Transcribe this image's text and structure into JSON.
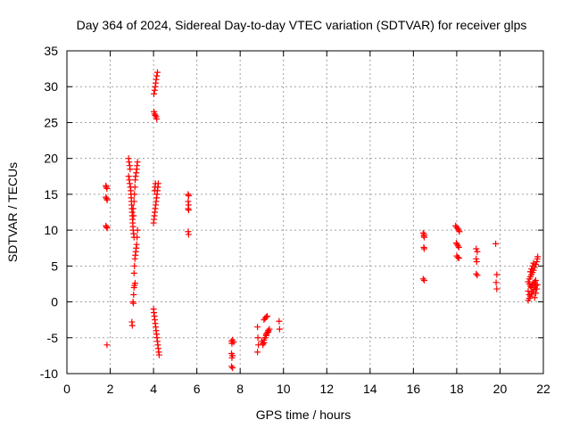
{
  "chart_data": {
    "type": "scatter",
    "title": "Day 364 of 2024, Sidereal Day-to-day VTEC variation (SDTVAR) for receiver glps",
    "xlabel": "GPS time / hours",
    "ylabel": "SDTVAR / TECUs",
    "xlim": [
      0,
      22
    ],
    "ylim": [
      -10,
      35
    ],
    "xticks": [
      0,
      2,
      4,
      6,
      8,
      10,
      12,
      14,
      16,
      18,
      20,
      22
    ],
    "yticks": [
      -10,
      -5,
      0,
      5,
      10,
      15,
      20,
      25,
      30,
      35
    ],
    "grid": true,
    "marker": "plus",
    "color": "#ff0000",
    "series": [
      {
        "name": "SDTVAR",
        "points": [
          [
            1.8,
            16.2
          ],
          [
            1.82,
            16.0
          ],
          [
            1.85,
            15.8
          ],
          [
            1.8,
            14.6
          ],
          [
            1.83,
            14.4
          ],
          [
            1.86,
            14.2
          ],
          [
            1.8,
            10.6
          ],
          [
            1.83,
            10.4
          ],
          [
            1.86,
            10.3
          ],
          [
            1.85,
            -6.0
          ],
          [
            2.85,
            20.0
          ],
          [
            2.87,
            19.5
          ],
          [
            2.9,
            19.0
          ],
          [
            2.92,
            18.5
          ],
          [
            2.85,
            17.5
          ],
          [
            2.88,
            17.0
          ],
          [
            2.9,
            16.5
          ],
          [
            2.93,
            16.0
          ],
          [
            2.95,
            15.5
          ],
          [
            2.96,
            15.0
          ],
          [
            2.97,
            14.5
          ],
          [
            2.98,
            14.0
          ],
          [
            2.99,
            13.5
          ],
          [
            3.0,
            13.0
          ],
          [
            3.01,
            12.5
          ],
          [
            3.02,
            12.0
          ],
          [
            3.03,
            11.5
          ],
          [
            3.04,
            11.0
          ],
          [
            3.05,
            10.5
          ],
          [
            3.06,
            10.0
          ],
          [
            3.08,
            9.5
          ],
          [
            3.1,
            9.0
          ],
          [
            3.0,
            -2.8
          ],
          [
            3.02,
            -3.3
          ],
          [
            3.05,
            0.0
          ],
          [
            3.07,
            -0.2
          ],
          [
            3.08,
            1.0
          ],
          [
            3.1,
            2.0
          ],
          [
            3.12,
            2.3
          ],
          [
            3.15,
            2.6
          ],
          [
            3.1,
            4.0
          ],
          [
            3.12,
            5.0
          ],
          [
            3.14,
            6.0
          ],
          [
            3.16,
            6.5
          ],
          [
            3.18,
            7.0
          ],
          [
            3.2,
            7.5
          ],
          [
            3.22,
            8.0
          ],
          [
            3.24,
            9.0
          ],
          [
            3.26,
            10.0
          ],
          [
            3.15,
            17.0
          ],
          [
            3.17,
            17.5
          ],
          [
            3.2,
            18.0
          ],
          [
            3.22,
            18.5
          ],
          [
            3.24,
            19.0
          ],
          [
            3.26,
            19.5
          ],
          [
            3.1,
            14.0
          ],
          [
            3.12,
            15.0
          ],
          [
            3.14,
            16.0
          ],
          [
            3.08,
            12.0
          ],
          [
            3.06,
            13.0
          ],
          [
            4.0,
            11.0
          ],
          [
            4.02,
            11.5
          ],
          [
            4.04,
            12.0
          ],
          [
            4.06,
            12.5
          ],
          [
            4.08,
            13.0
          ],
          [
            4.1,
            13.5
          ],
          [
            4.12,
            14.0
          ],
          [
            4.14,
            14.5
          ],
          [
            4.16,
            15.0
          ],
          [
            4.18,
            15.5
          ],
          [
            4.2,
            16.0
          ],
          [
            4.22,
            16.5
          ],
          [
            4.05,
            15.5
          ],
          [
            4.07,
            16.0
          ],
          [
            4.09,
            16.5
          ],
          [
            4.02,
            26.5
          ],
          [
            4.05,
            26.2
          ],
          [
            4.08,
            26.0
          ],
          [
            4.12,
            25.8
          ],
          [
            4.15,
            25.5
          ],
          [
            4.02,
            29.0
          ],
          [
            4.05,
            29.5
          ],
          [
            4.08,
            30.0
          ],
          [
            4.1,
            30.5
          ],
          [
            4.12,
            31.0
          ],
          [
            4.15,
            31.5
          ],
          [
            4.18,
            32.0
          ],
          [
            4.0,
            -1.0
          ],
          [
            4.02,
            -1.5
          ],
          [
            4.04,
            -2.0
          ],
          [
            4.06,
            -2.5
          ],
          [
            4.08,
            -3.0
          ],
          [
            4.1,
            -3.5
          ],
          [
            4.12,
            -4.0
          ],
          [
            4.14,
            -4.5
          ],
          [
            4.16,
            -5.0
          ],
          [
            4.18,
            -5.5
          ],
          [
            4.2,
            -6.0
          ],
          [
            4.22,
            -6.5
          ],
          [
            4.24,
            -7.0
          ],
          [
            4.26,
            -7.4
          ],
          [
            5.6,
            15.0
          ],
          [
            5.62,
            14.8
          ],
          [
            5.6,
            14.0
          ],
          [
            5.62,
            13.5
          ],
          [
            5.6,
            13.0
          ],
          [
            5.62,
            12.8
          ],
          [
            5.6,
            9.8
          ],
          [
            5.62,
            9.4
          ],
          [
            7.6,
            -5.5
          ],
          [
            7.65,
            -5.3
          ],
          [
            7.7,
            -5.6
          ],
          [
            7.62,
            -5.8
          ],
          [
            7.6,
            -7.2
          ],
          [
            7.65,
            -7.5
          ],
          [
            7.62,
            -7.8
          ],
          [
            7.6,
            -9.0
          ],
          [
            7.65,
            -9.2
          ],
          [
            8.8,
            -3.5
          ],
          [
            8.82,
            -5.0
          ],
          [
            8.84,
            -6.0
          ],
          [
            8.8,
            -7.0
          ],
          [
            9.0,
            -5.5
          ],
          [
            9.05,
            -5.8
          ],
          [
            9.1,
            -5.3
          ],
          [
            9.15,
            -5.0
          ],
          [
            9.2,
            -4.7
          ],
          [
            9.25,
            -4.3
          ],
          [
            9.3,
            -4.0
          ],
          [
            9.35,
            -3.8
          ],
          [
            9.05,
            -6.0
          ],
          [
            9.1,
            -5.7
          ],
          [
            9.2,
            -4.5
          ],
          [
            9.3,
            -4.2
          ],
          [
            9.1,
            -2.5
          ],
          [
            9.15,
            -2.3
          ],
          [
            9.2,
            -2.1
          ],
          [
            9.25,
            -2.0
          ],
          [
            9.8,
            -2.7
          ],
          [
            9.82,
            -3.8
          ],
          [
            16.45,
            9.6
          ],
          [
            16.5,
            9.4
          ],
          [
            16.48,
            9.2
          ],
          [
            16.5,
            9.0
          ],
          [
            16.5,
            7.4
          ],
          [
            16.48,
            7.6
          ],
          [
            16.45,
            3.2
          ],
          [
            16.5,
            3.0
          ],
          [
            17.95,
            10.6
          ],
          [
            18.0,
            10.4
          ],
          [
            18.05,
            10.2
          ],
          [
            18.1,
            10.0
          ],
          [
            18.12,
            9.8
          ],
          [
            17.98,
            8.2
          ],
          [
            18.02,
            8.0
          ],
          [
            18.06,
            7.8
          ],
          [
            18.1,
            7.6
          ],
          [
            18.0,
            6.4
          ],
          [
            18.05,
            6.2
          ],
          [
            18.1,
            6.1
          ],
          [
            18.9,
            7.4
          ],
          [
            18.95,
            7.0
          ],
          [
            18.9,
            6.0
          ],
          [
            18.92,
            5.6
          ],
          [
            18.9,
            3.9
          ],
          [
            18.95,
            3.7
          ],
          [
            19.8,
            8.1
          ],
          [
            19.85,
            3.8
          ],
          [
            19.82,
            2.7
          ],
          [
            19.85,
            1.8
          ],
          [
            21.3,
            0.2
          ],
          [
            21.35,
            0.5
          ],
          [
            21.4,
            0.8
          ],
          [
            21.45,
            1.1
          ],
          [
            21.5,
            1.4
          ],
          [
            21.55,
            1.7
          ],
          [
            21.6,
            2.0
          ],
          [
            21.65,
            2.3
          ],
          [
            21.3,
            2.8
          ],
          [
            21.35,
            2.5
          ],
          [
            21.4,
            2.2
          ],
          [
            21.45,
            2.0
          ],
          [
            21.5,
            2.4
          ],
          [
            21.55,
            2.6
          ],
          [
            21.6,
            2.8
          ],
          [
            21.65,
            3.0
          ],
          [
            21.35,
            3.2
          ],
          [
            21.4,
            3.5
          ],
          [
            21.45,
            3.8
          ],
          [
            21.5,
            4.1
          ],
          [
            21.55,
            4.4
          ],
          [
            21.6,
            4.8
          ],
          [
            21.65,
            5.2
          ],
          [
            21.7,
            5.6
          ],
          [
            21.72,
            6.0
          ],
          [
            21.74,
            6.3
          ],
          [
            21.5,
            5.0
          ],
          [
            21.55,
            5.4
          ],
          [
            21.45,
            4.6
          ],
          [
            21.4,
            4.2
          ],
          [
            21.3,
            1.5
          ],
          [
            21.35,
            1.0
          ],
          [
            21.6,
            0.6
          ],
          [
            21.65,
            1.2
          ],
          [
            21.7,
            1.8
          ],
          [
            21.72,
            2.4
          ]
        ]
      }
    ]
  }
}
